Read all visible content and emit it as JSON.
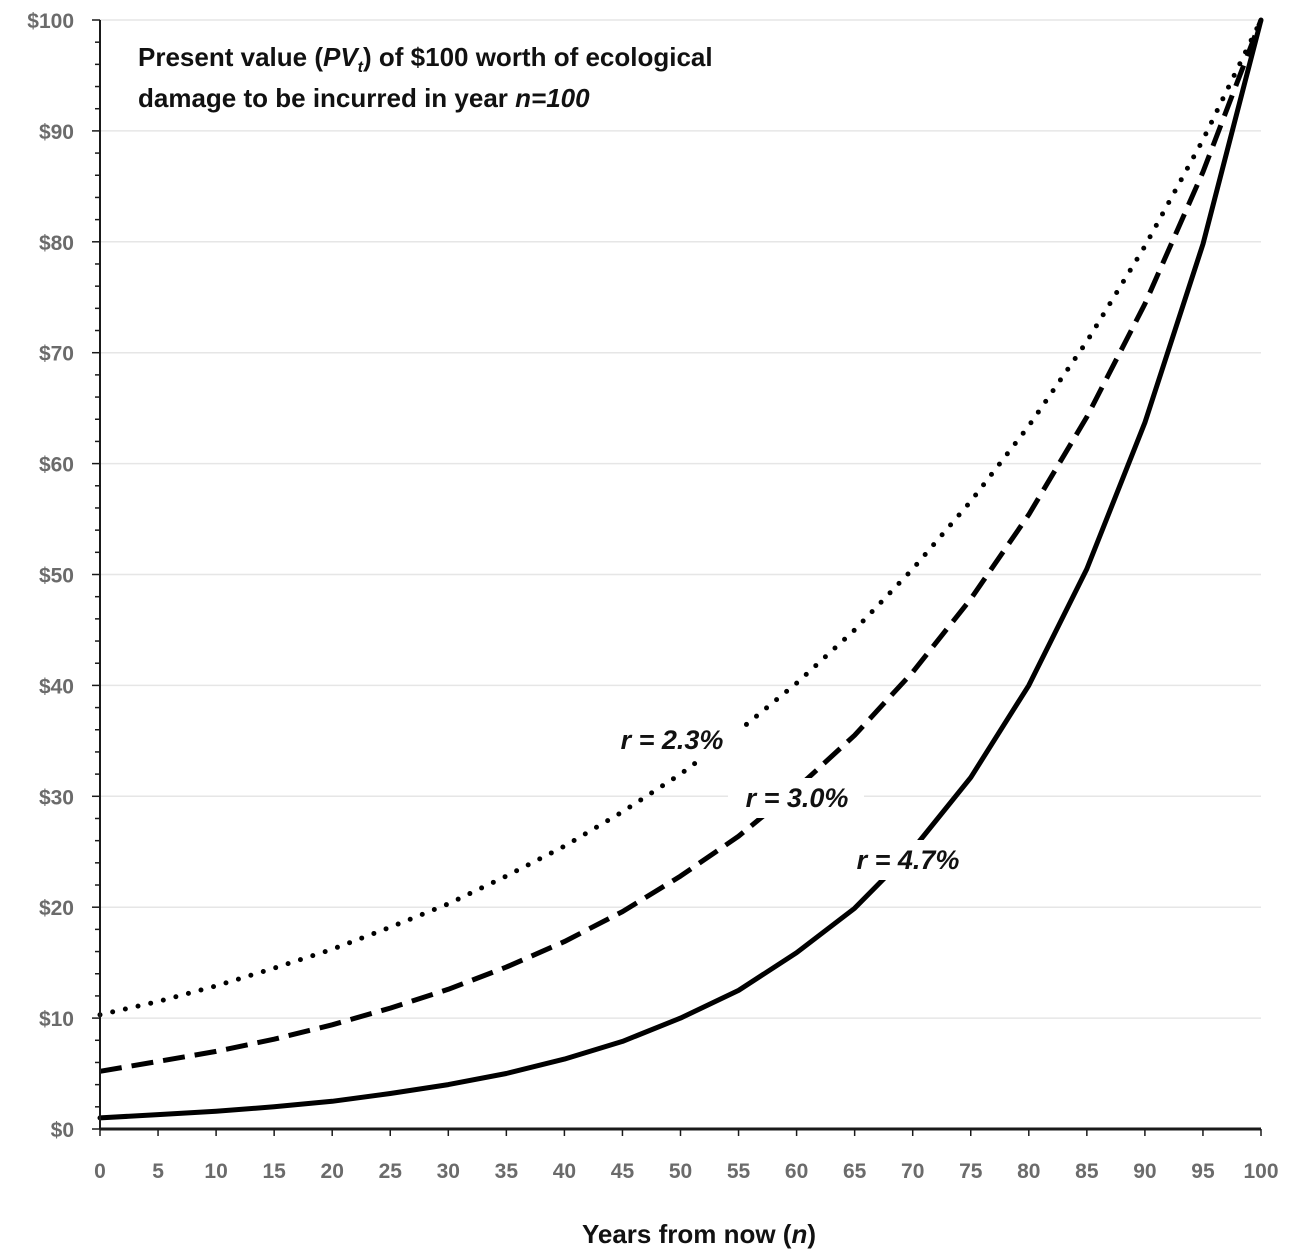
{
  "chart_data": {
    "type": "line",
    "title_parts": {
      "line1_before": "Present value (",
      "pv": "PV",
      "pv_sub": "t",
      "line1_after": ") of $100 worth of ecological",
      "line2_before": "damage to be incurred in year ",
      "line2_italic": "n=100"
    },
    "xlabel_parts": {
      "before": "Years from now (",
      "italic": "n",
      "after": ")"
    },
    "xlim": [
      0,
      100
    ],
    "ylim": [
      0,
      100
    ],
    "xticks": [
      0,
      5,
      10,
      15,
      20,
      25,
      30,
      35,
      40,
      45,
      50,
      55,
      60,
      65,
      70,
      75,
      80,
      85,
      90,
      95,
      100
    ],
    "xtick_labels": [
      "0",
      "5",
      "10",
      "15",
      "20",
      "25",
      "30",
      "35",
      "40",
      "45",
      "50",
      "55",
      "60",
      "65",
      "70",
      "75",
      "80",
      "85",
      "90",
      "95",
      "100"
    ],
    "yticks": [
      0,
      10,
      20,
      30,
      40,
      50,
      60,
      70,
      80,
      90,
      100
    ],
    "ytick_labels": [
      "$0",
      "$10",
      "$20",
      "$30",
      "$40",
      "$50",
      "$60",
      "$70",
      "$80",
      "$90",
      "$100"
    ],
    "grid": "horizontal",
    "legend": "none",
    "series": [
      {
        "label": "r = 2.3%",
        "rate": 0.023,
        "style": "dotted",
        "x": [
          0,
          5,
          10,
          15,
          20,
          25,
          30,
          35,
          40,
          45,
          50,
          55,
          60,
          65,
          70,
          75,
          80,
          85,
          90,
          95,
          100
        ],
        "y": [
          10.3,
          11.5,
          12.9,
          14.5,
          16.2,
          18.2,
          20.3,
          22.8,
          25.5,
          28.6,
          32.0,
          35.9,
          40.2,
          45.0,
          50.5,
          56.6,
          63.4,
          71.0,
          79.6,
          89.2,
          100.0
        ]
      },
      {
        "label": "r = 3.0%",
        "rate": 0.03,
        "style": "dashed",
        "x": [
          0,
          5,
          10,
          15,
          20,
          25,
          30,
          35,
          40,
          45,
          50,
          55,
          60,
          65,
          70,
          75,
          80,
          85,
          90,
          95,
          100
        ],
        "y": [
          5.2,
          6.1,
          7.0,
          8.1,
          9.4,
          10.9,
          12.6,
          14.6,
          16.9,
          19.6,
          22.8,
          26.4,
          30.7,
          35.5,
          41.2,
          47.8,
          55.4,
          64.2,
          74.4,
          86.3,
          100.0
        ]
      },
      {
        "label": "r = 4.7%",
        "rate": 0.047,
        "style": "solid",
        "x": [
          0,
          5,
          10,
          15,
          20,
          25,
          30,
          35,
          40,
          45,
          50,
          55,
          60,
          65,
          70,
          75,
          80,
          85,
          90,
          95,
          100
        ],
        "y": [
          1.0,
          1.3,
          1.6,
          2.0,
          2.5,
          3.2,
          4.0,
          5.0,
          6.3,
          7.9,
          10.0,
          12.5,
          15.9,
          19.9,
          25.2,
          31.7,
          40.0,
          50.5,
          63.7,
          79.8,
          100.0
        ]
      }
    ]
  }
}
